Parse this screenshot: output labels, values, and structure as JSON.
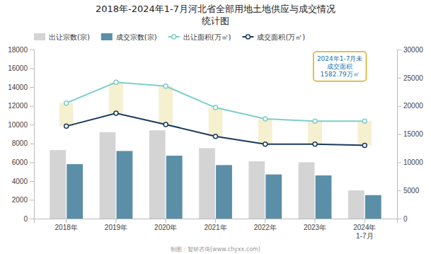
{
  "chart_data": {
    "type": "bar",
    "title": "2018年-2024年1-7月河北省全部用地土地供应与成交情况",
    "subtitle": "统计图",
    "categories": [
      "2018年",
      "2019年",
      "2020年",
      "2021年",
      "2022年",
      "2023年",
      "2024年\n1-7月"
    ],
    "series": [
      {
        "name": "出让宗数(宗)",
        "type": "bar",
        "color": "#d4d4d4",
        "values": [
          7300,
          9200,
          9400,
          7500,
          6100,
          6000,
          3000
        ]
      },
      {
        "name": "成交宗数(宗)",
        "type": "bar",
        "color": "#5b8fa8",
        "values": [
          5800,
          7200,
          6700,
          5700,
          4700,
          4600,
          2500
        ]
      },
      {
        "name": "出让面积(万㎡)",
        "type": "line",
        "axis": "y2",
        "marker": "circle",
        "color": "#7ececa",
        "values": [
          20500,
          24200,
          23500,
          19700,
          17700,
          17300,
          17300
        ]
      },
      {
        "name": "成交面积(万㎡)",
        "type": "line",
        "axis": "y2",
        "marker": "circle",
        "color": "#1a3a5c",
        "values": [
          16400,
          18700,
          16700,
          14600,
          13200,
          13200,
          13000
        ]
      }
    ],
    "ylim": [
      0,
      18000
    ],
    "yticks": [
      0,
      2000,
      4000,
      6000,
      8000,
      10000,
      12000,
      14000,
      16000,
      18000
    ],
    "y2lim": [
      0,
      30000
    ],
    "y2ticks": [
      0,
      5000,
      10000,
      15000,
      20000,
      25000,
      30000
    ],
    "annotations": [
      "2024年1-7月未\n成交面积\n1582.79万㎡"
    ],
    "source": "制图：智研咨询(www.chyxx.com)",
    "legend": "top",
    "grid": false
  }
}
